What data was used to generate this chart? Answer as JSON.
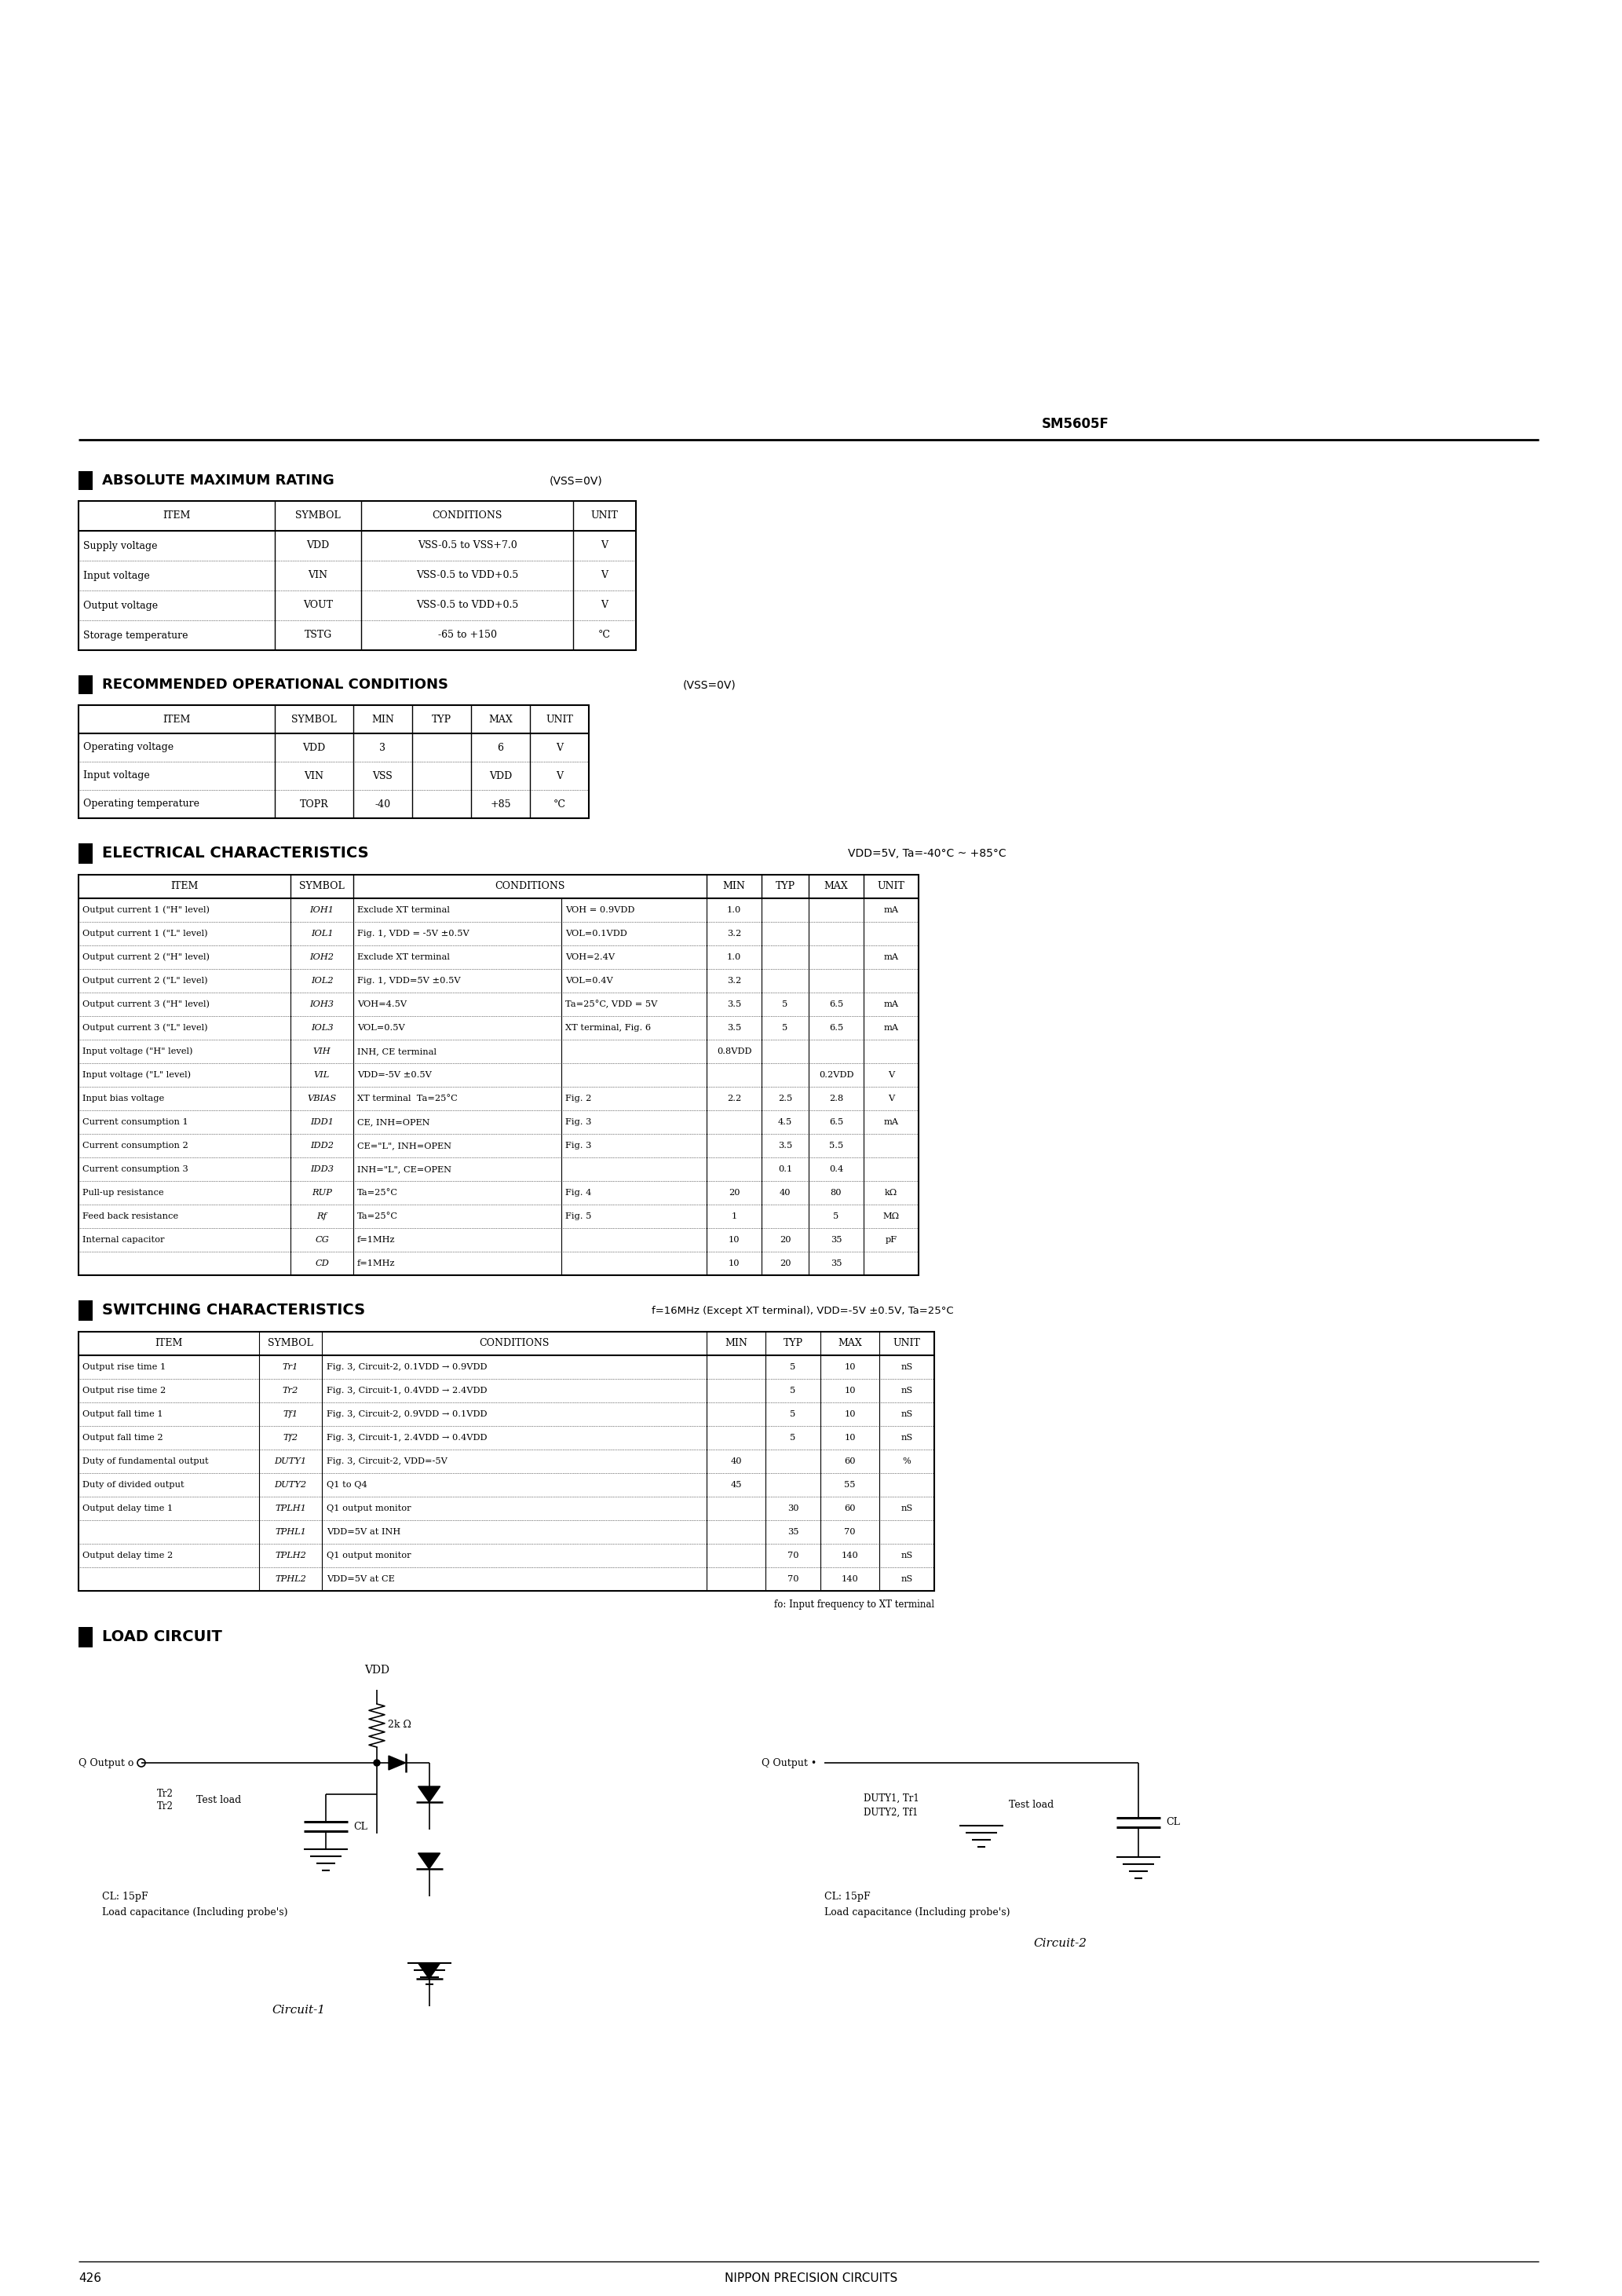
{
  "title": "SM5605F",
  "page_num": "426",
  "footer": "NIPPON PRECISION CIRCUITS",
  "background": "#ffffff",
  "text_color": "#000000"
}
